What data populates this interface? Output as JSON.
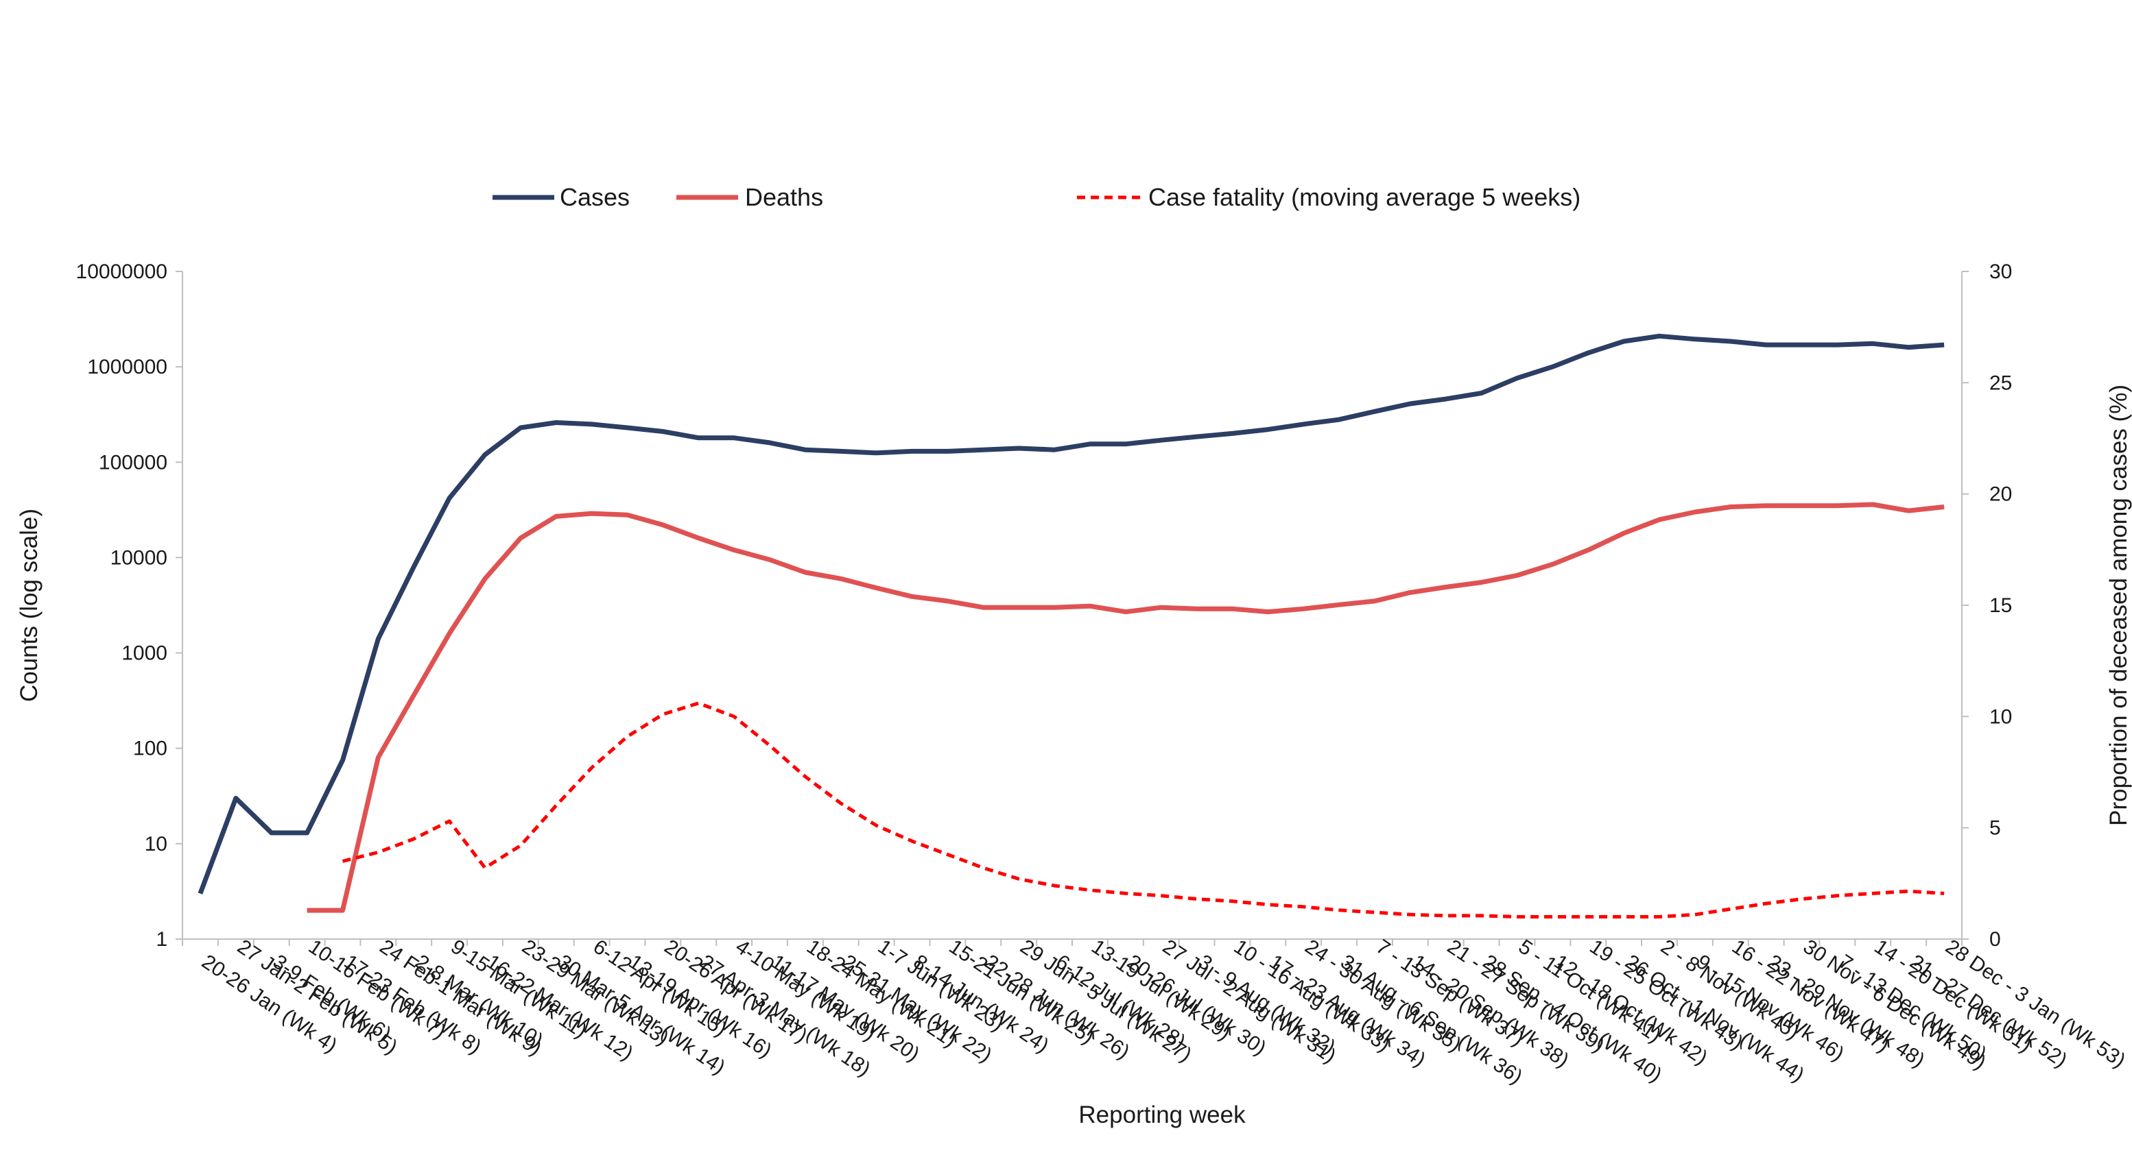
{
  "chart_data": {
    "type": "line",
    "xlabel": "Reporting week",
    "ylabel": "Counts (log scale)",
    "y2label": "Proportion  of deceased among cases (%)",
    "y_scale": "log",
    "ylim": [
      1,
      10000000
    ],
    "y2lim": [
      0,
      30
    ],
    "yticks": [
      "1",
      "10",
      "100",
      "1000",
      "10000",
      "100000",
      "1000000",
      "10000000"
    ],
    "y2ticks": [
      "0",
      "5",
      "10",
      "15",
      "20",
      "25",
      "30"
    ],
    "legend_position": "top",
    "grid": false,
    "categories": [
      "20-26 Jan (Wk 4)",
      "27 Jan-2 Feb (Wk 5)",
      "3-9 Feb (Wk 6)",
      "10-16 Feb (Wk 7)",
      "17-23 Feb (Wk 8)",
      "24 Feb-1 Mar (Wk 9)",
      "2-8 Mar (Wk 10)",
      "9-15 Mar (Wk 11)",
      "16-22 Mar (Wk 12)",
      "23-29 Mar (Wk 13)",
      "30 Mar-5 Apr (Wk 14)",
      "6-12 Apr (Wk 15)",
      "13-19 Apr (Wk 16)",
      "20-26 Apr (Wk 17)",
      "27 Apr-3 May (Wk 18)",
      "4-10 May (Wk 19)",
      "11-17 May (Wk 20)",
      "18-24 May (Wk 21)",
      "25-31 May (Wk 22)",
      "1-7 Jun (Wk 23)",
      "8-14 Jun (Wk 24)",
      "15-21 Jun (Wk 25)",
      "22-28 Jun (Wk 26)",
      "29 Jun - 5 Jul (Wk 27)",
      "6-12 Jul (Wk 28)",
      "13-19 Jul (Wk 29)",
      "20-26 Jul (Wk 30)",
      "27 Jul - 2 Aug (Wk 31)",
      "3 - 9 Aug (Wk 32)",
      "10 - 16 Aug (Wk 33)",
      "17 - 23 Aug (Wk 34)",
      "24 - 30 Aug (Wk 35)",
      "31 Aug - 6 Sep (Wk 36)",
      "7 - 13 Sep (Wk 37)",
      "14 - 20 Sep (Wk 38)",
      "21 - 27 Sep (Wk 39)",
      "28 Sep - 4 Oct (Wk 40)",
      "5 - 11 Oct (Wk 41)",
      "12 - 18 Oct (Wk 42)",
      "19 - 25 Oct (Wk 43)",
      "26 Oct - 1 Nov (Wk 44)",
      "2 - 8 Nov (Wk 45)",
      "9 - 15 Nov (Wk 46)",
      "16 - 22 Nov (Wk 47)",
      "23 - 29 Nov (Wk 48)",
      "30 Nov - 6 Dec (Wk 49)",
      "7 - 13 Dec (Wk 50)",
      "14 - 20 Dec (Wk 51)",
      "21 - 27 Dec (Wk 52)",
      "28 Dec - 3 Jan (Wk 53)"
    ],
    "series": [
      {
        "name": "Cases",
        "axis": "left",
        "color": "#2c3e63",
        "style": "solid",
        "values": [
          3,
          30,
          13,
          13,
          75,
          1400,
          8000,
          42000,
          120000,
          230000,
          260000,
          250000,
          230000,
          210000,
          180000,
          180000,
          160000,
          135000,
          130000,
          125000,
          130000,
          130000,
          135000,
          140000,
          135000,
          155000,
          155000,
          170000,
          185000,
          200000,
          220000,
          250000,
          280000,
          340000,
          410000,
          460000,
          530000,
          760000,
          1000000,
          1400000,
          1850000,
          2100000,
          1950000,
          1850000,
          1700000,
          1700000,
          1700000,
          1750000,
          1600000,
          1700000
        ]
      },
      {
        "name": "Deaths",
        "axis": "left",
        "color": "#e05252",
        "style": "solid",
        "values": [
          null,
          null,
          null,
          2,
          2,
          80,
          360,
          1600,
          6000,
          16000,
          27000,
          29000,
          28000,
          22000,
          16000,
          12000,
          9500,
          7000,
          6000,
          4800,
          3900,
          3500,
          3000,
          3000,
          3000,
          3100,
          2700,
          3000,
          2900,
          2900,
          2700,
          2900,
          3200,
          3500,
          4300,
          4900,
          5500,
          6500,
          8500,
          12000,
          18000,
          25000,
          30000,
          34000,
          35000,
          35000,
          35000,
          36000,
          31000,
          34000
        ]
      },
      {
        "name": "Case fatality (moving average 5 weeks)",
        "axis": "right",
        "color": "#ff0000",
        "style": "dashed",
        "values": [
          null,
          null,
          null,
          null,
          3.5,
          3.9,
          4.5,
          5.3,
          3.2,
          4.2,
          6.0,
          7.7,
          9.1,
          10.1,
          10.6,
          10.0,
          8.7,
          7.3,
          6.1,
          5.1,
          4.4,
          3.8,
          3.2,
          2.7,
          2.4,
          2.2,
          2.05,
          1.95,
          1.8,
          1.7,
          1.55,
          1.45,
          1.3,
          1.2,
          1.1,
          1.05,
          1.05,
          1.0,
          1.0,
          1.0,
          1.0,
          1.0,
          1.1,
          1.35,
          1.6,
          1.8,
          1.95,
          2.05,
          2.15,
          2.05
        ]
      }
    ]
  }
}
